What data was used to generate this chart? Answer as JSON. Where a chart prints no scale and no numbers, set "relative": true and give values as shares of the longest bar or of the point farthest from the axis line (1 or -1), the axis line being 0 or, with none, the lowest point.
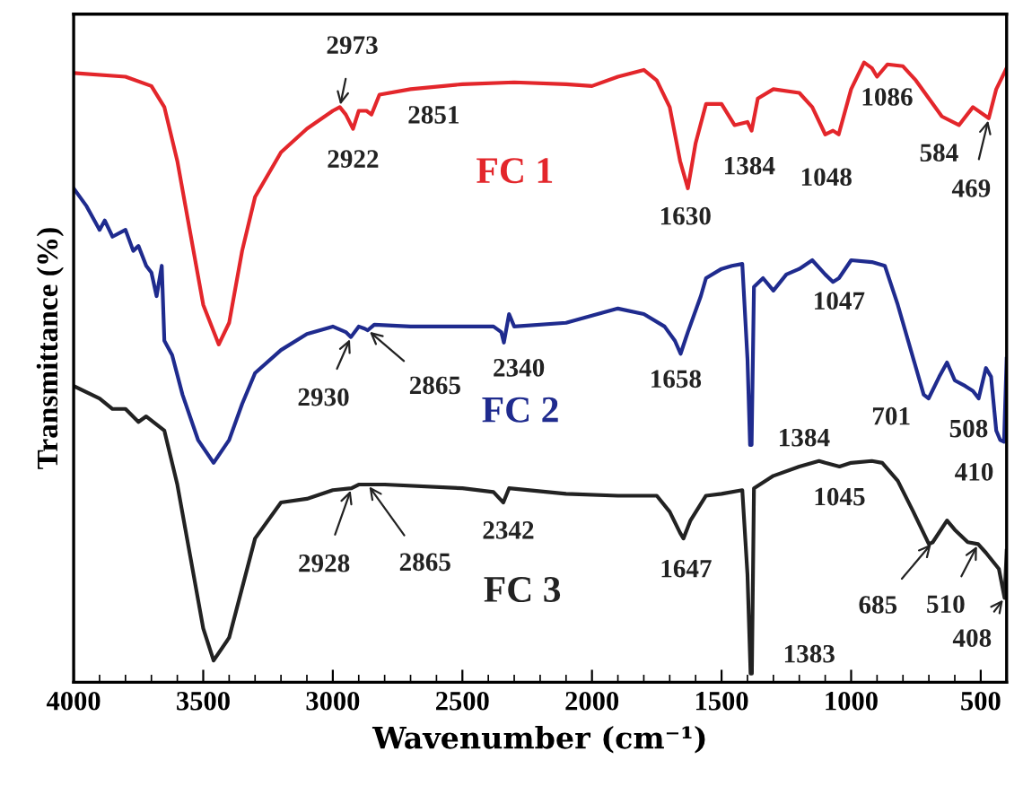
{
  "chart_data": {
    "type": "line",
    "relative": true,
    "xlabel": "Wavenumber (cm⁻¹)",
    "ylabel": "Transmittance (%)",
    "xlim": [
      4000,
      400
    ],
    "xticks": [
      4000,
      3500,
      3000,
      2500,
      2000,
      1500,
      1000,
      500
    ],
    "grid": false,
    "legend": false,
    "marker": "none",
    "line_style": "solid",
    "series": [
      {
        "name": "FC 1",
        "color": "#e3262b",
        "x": [
          4000,
          3800,
          3700,
          3650,
          3600,
          3550,
          3500,
          3440,
          3400,
          3350,
          3300,
          3200,
          3100,
          3000,
          2973,
          2950,
          2922,
          2900,
          2870,
          2851,
          2820,
          2700,
          2500,
          2300,
          2100,
          2000,
          1900,
          1800,
          1750,
          1700,
          1660,
          1630,
          1600,
          1560,
          1500,
          1450,
          1400,
          1384,
          1360,
          1300,
          1200,
          1150,
          1100,
          1070,
          1048,
          1000,
          950,
          920,
          900,
          860,
          800,
          750,
          700,
          650,
          584,
          530,
          469,
          440,
          400
        ],
        "values": [
          0.983,
          0.977,
          0.962,
          0.928,
          0.841,
          0.725,
          0.609,
          0.545,
          0.58,
          0.696,
          0.783,
          0.855,
          0.893,
          0.922,
          0.928,
          0.916,
          0.893,
          0.922,
          0.922,
          0.916,
          0.948,
          0.957,
          0.965,
          0.968,
          0.965,
          0.962,
          0.977,
          0.988,
          0.971,
          0.928,
          0.841,
          0.797,
          0.87,
          0.933,
          0.933,
          0.899,
          0.904,
          0.89,
          0.942,
          0.957,
          0.951,
          0.928,
          0.884,
          0.89,
          0.884,
          0.957,
          1.0,
          0.991,
          0.977,
          0.997,
          0.994,
          0.971,
          0.942,
          0.913,
          0.899,
          0.928,
          0.91,
          0.957,
          0.991
        ]
      },
      {
        "name": "FC 2",
        "color": "#1f2b8e",
        "x": [
          4000,
          3950,
          3900,
          3880,
          3850,
          3800,
          3770,
          3750,
          3720,
          3700,
          3680,
          3660,
          3650,
          3620,
          3580,
          3520,
          3460,
          3400,
          3350,
          3300,
          3200,
          3100,
          3000,
          2950,
          2930,
          2900,
          2880,
          2865,
          2840,
          2700,
          2500,
          2380,
          2350,
          2340,
          2320,
          2300,
          2100,
          1900,
          1800,
          1720,
          1680,
          1658,
          1630,
          1580,
          1560,
          1500,
          1460,
          1420,
          1400,
          1390,
          1384,
          1375,
          1340,
          1300,
          1250,
          1200,
          1150,
          1100,
          1070,
          1047,
          1000,
          920,
          870,
          820,
          760,
          720,
          701,
          660,
          630,
          600,
          560,
          530,
          508,
          480,
          460,
          440,
          425,
          410,
          400
        ],
        "values": [
          0.797,
          0.768,
          0.73,
          0.745,
          0.719,
          0.73,
          0.696,
          0.704,
          0.672,
          0.661,
          0.623,
          0.672,
          0.551,
          0.528,
          0.464,
          0.391,
          0.354,
          0.391,
          0.449,
          0.499,
          0.536,
          0.562,
          0.574,
          0.565,
          0.557,
          0.574,
          0.571,
          0.568,
          0.577,
          0.574,
          0.574,
          0.574,
          0.565,
          0.548,
          0.594,
          0.574,
          0.58,
          0.603,
          0.594,
          0.574,
          0.551,
          0.53,
          0.565,
          0.623,
          0.652,
          0.667,
          0.672,
          0.675,
          0.522,
          0.383,
          0.383,
          0.638,
          0.652,
          0.632,
          0.658,
          0.667,
          0.681,
          0.658,
          0.646,
          0.652,
          0.681,
          0.678,
          0.672,
          0.609,
          0.522,
          0.464,
          0.458,
          0.493,
          0.516,
          0.487,
          0.478,
          0.47,
          0.458,
          0.507,
          0.493,
          0.406,
          0.391,
          0.388,
          0.522
        ]
      },
      {
        "name": "FC 3",
        "color": "#222222",
        "x": [
          4000,
          3900,
          3850,
          3800,
          3750,
          3720,
          3650,
          3600,
          3550,
          3500,
          3460,
          3400,
          3300,
          3200,
          3100,
          3000,
          2928,
          2900,
          2865,
          2800,
          2500,
          2380,
          2342,
          2320,
          2100,
          1900,
          1750,
          1700,
          1660,
          1647,
          1620,
          1560,
          1500,
          1420,
          1400,
          1388,
          1383,
          1375,
          1300,
          1200,
          1124,
          1100,
          1045,
          1000,
          920,
          880,
          820,
          760,
          700,
          685,
          630,
          600,
          550,
          510,
          480,
          430,
          408,
          400
        ],
        "values": [
          0.478,
          0.458,
          0.441,
          0.441,
          0.42,
          0.429,
          0.406,
          0.319,
          0.203,
          0.087,
          0.035,
          0.072,
          0.232,
          0.29,
          0.296,
          0.31,
          0.313,
          0.319,
          0.319,
          0.319,
          0.313,
          0.307,
          0.29,
          0.313,
          0.304,
          0.301,
          0.301,
          0.275,
          0.241,
          0.232,
          0.261,
          0.301,
          0.304,
          0.31,
          0.174,
          0.014,
          0.014,
          0.313,
          0.333,
          0.348,
          0.357,
          0.354,
          0.348,
          0.354,
          0.357,
          0.354,
          0.325,
          0.275,
          0.223,
          0.226,
          0.261,
          0.246,
          0.226,
          0.223,
          0.209,
          0.183,
          0.136,
          0.212
        ]
      }
    ],
    "annotations": [
      {
        "text": "2973",
        "x": 2973,
        "y": 0.928
      },
      {
        "text": "2922",
        "x": 2922,
        "y": 0.893
      },
      {
        "text": "2851",
        "x": 2851,
        "y": 0.916
      },
      {
        "text": "1630",
        "x": 1630,
        "y": 0.797
      },
      {
        "text": "1384",
        "x": 1384,
        "y": 0.89
      },
      {
        "text": "1048",
        "x": 1048,
        "y": 0.884
      },
      {
        "text": "1086",
        "x": 900,
        "y": 0.977
      },
      {
        "text": "584",
        "x": 584,
        "y": 0.899
      },
      {
        "text": "469",
        "x": 469,
        "y": 0.91
      },
      {
        "text": "2930",
        "x": 2930,
        "y": 0.557
      },
      {
        "text": "2865",
        "x": 2865,
        "y": 0.568
      },
      {
        "text": "2340",
        "x": 2340,
        "y": 0.548
      },
      {
        "text": "1658",
        "x": 1658,
        "y": 0.53
      },
      {
        "text": "1384",
        "x": 1384,
        "y": 0.383
      },
      {
        "text": "1047",
        "x": 1047,
        "y": 0.652
      },
      {
        "text": "701",
        "x": 701,
        "y": 0.458
      },
      {
        "text": "508",
        "x": 508,
        "y": 0.458
      },
      {
        "text": "410",
        "x": 410,
        "y": 0.388
      },
      {
        "text": "2928",
        "x": 2928,
        "y": 0.313
      },
      {
        "text": "2865",
        "x": 2865,
        "y": 0.319
      },
      {
        "text": "2342",
        "x": 2342,
        "y": 0.29
      },
      {
        "text": "1647",
        "x": 1647,
        "y": 0.232
      },
      {
        "text": "1383",
        "x": 1383,
        "y": 0.014
      },
      {
        "text": "1045",
        "x": 1045,
        "y": 0.348
      },
      {
        "text": "685",
        "x": 685,
        "y": 0.226
      },
      {
        "text": "510",
        "x": 510,
        "y": 0.223
      },
      {
        "text": "408",
        "x": 408,
        "y": 0.136
      }
    ]
  }
}
